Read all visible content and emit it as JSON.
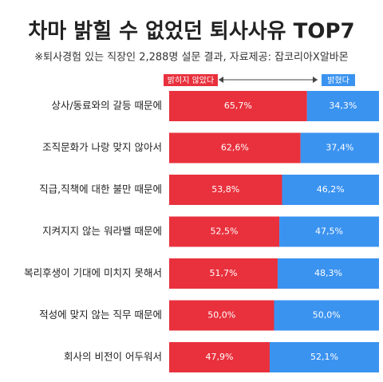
{
  "chart_data": {
    "type": "stacked-bar-h",
    "title": "차마 밝힐 수 없었던 퇴사사유 TOP7",
    "subtitle": "※퇴사경험 있는 직장인 2,288명 설문 결과, 자료제공: 잡코리아X알바몬",
    "categories": [
      "상사/동료와의 갈등 때문에",
      "조직문화가 나랑 맞지 않아서",
      "직급,직책에 대한 불만 때문에",
      "지켜지지 않는 워라밸 때문에",
      "복리후생이 기대에 미치지 못해서",
      "적성에 맞지 않는 직무 때문에",
      "회사의 비전이 어두워서"
    ],
    "series": [
      {
        "name": "밝히지 않았다",
        "color": "#e8313d",
        "values": [
          65.7,
          62.6,
          53.8,
          52.5,
          51.7,
          50.0,
          47.9
        ],
        "value_labels": [
          "65,7%",
          "62,6%",
          "53,8%",
          "52,5%",
          "51,7%",
          "50,0%",
          "47,9%"
        ]
      },
      {
        "name": "밝혔다",
        "color": "#3b93f0",
        "values": [
          34.3,
          37.4,
          46.2,
          47.5,
          48.3,
          50.0,
          52.1
        ],
        "value_labels": [
          "34,3%",
          "37,4%",
          "46,2%",
          "47,5%",
          "48,3%",
          "50,0%",
          "52,1%"
        ]
      }
    ],
    "xlim": [
      0,
      100
    ]
  }
}
